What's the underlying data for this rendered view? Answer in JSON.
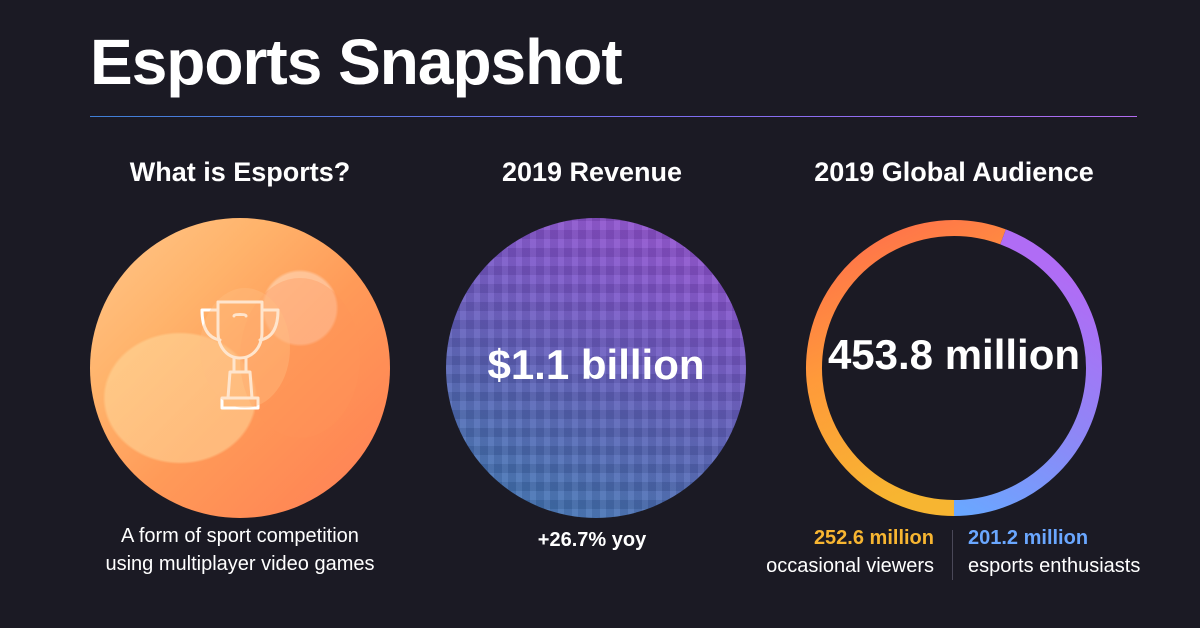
{
  "title": "Esports Snapshot",
  "colors": {
    "background": "#1b1a24",
    "occasional": "#f7b531",
    "enthusiasts": "#6aa7ff",
    "ring_orange": "#ff7a4a",
    "ring_purple": "#a96cf5"
  },
  "columns": [
    {
      "heading": "What is Esports?",
      "icon": "trophy-icon",
      "description_line1": "A form of sport competition",
      "description_line2": "using multiplayer video games"
    },
    {
      "heading": "2019 Revenue",
      "value": "$1.1 billion",
      "change": "+26.7% yoy"
    },
    {
      "heading": "2019 Global Audience",
      "value": "453.8 million",
      "segments": [
        {
          "value": "252.6 million",
          "label": "occasional viewers",
          "share": 0.557
        },
        {
          "value": "201.2 million",
          "label": "esports enthusiasts",
          "share": 0.443
        }
      ]
    }
  ]
}
